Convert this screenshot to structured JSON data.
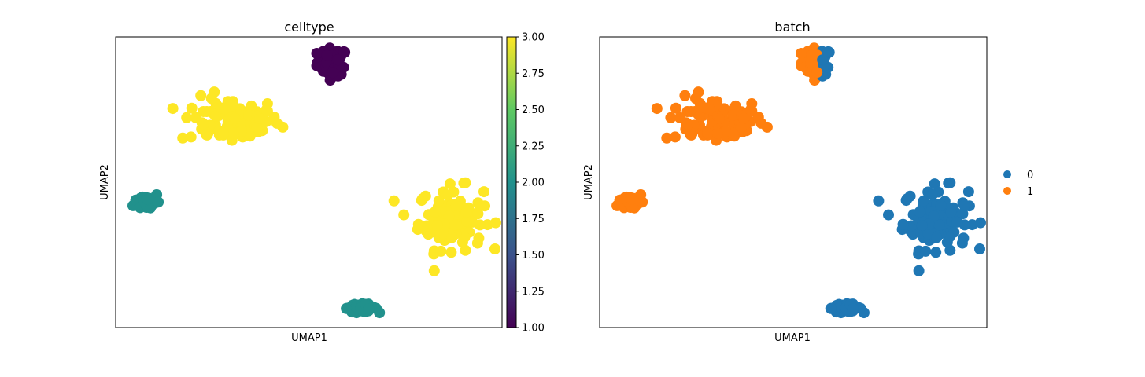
{
  "colors": {
    "viridis": [
      "#440154",
      "#3b528b",
      "#21918c",
      "#5ec962",
      "#fde725"
    ],
    "batch0": "#1f77b4",
    "batch1": "#ff7f0e"
  },
  "chart_data": [
    {
      "type": "scatter",
      "title": "celltype",
      "xlabel": "UMAP1",
      "ylabel": "UMAP2",
      "colorbar": {
        "min": 1.0,
        "max": 3.0,
        "ticks": [
          1.0,
          1.25,
          1.5,
          1.75,
          2.0,
          2.25,
          2.5,
          2.75,
          3.0
        ],
        "tick_labels": [
          "1.00",
          "1.25",
          "1.50",
          "1.75",
          "2.00",
          "2.25",
          "2.50",
          "2.75",
          "3.00"
        ],
        "colormap": "viridis"
      },
      "clusters": [
        {
          "celltype": 1,
          "batch": "mixed",
          "center": [
            5.1,
            9.3
          ],
          "spread": [
            0.35,
            0.45
          ],
          "n": 60
        },
        {
          "celltype": 3,
          "batch": "1",
          "center": [
            2.5,
            7.2
          ],
          "spread": [
            1.15,
            0.75
          ],
          "n": 90
        },
        {
          "celltype": 2,
          "batch": "1",
          "center": [
            0.4,
            4.3
          ],
          "spread": [
            0.3,
            0.3
          ],
          "n": 25
        },
        {
          "celltype": 3,
          "batch": "0",
          "center": [
            8.1,
            3.7
          ],
          "spread": [
            0.75,
            1.0
          ],
          "n": 110
        },
        {
          "celltype": 2,
          "batch": "0",
          "center": [
            5.8,
            0.5
          ],
          "spread": [
            0.4,
            0.12
          ],
          "n": 30
        }
      ],
      "points": []
    },
    {
      "type": "scatter",
      "title": "batch",
      "xlabel": "UMAP1",
      "ylabel": "UMAP2",
      "legend": {
        "placement": "right",
        "entries": [
          {
            "label": "0",
            "color": "#1f77b4"
          },
          {
            "label": "1",
            "color": "#ff7f0e"
          }
        ]
      },
      "points": []
    }
  ]
}
